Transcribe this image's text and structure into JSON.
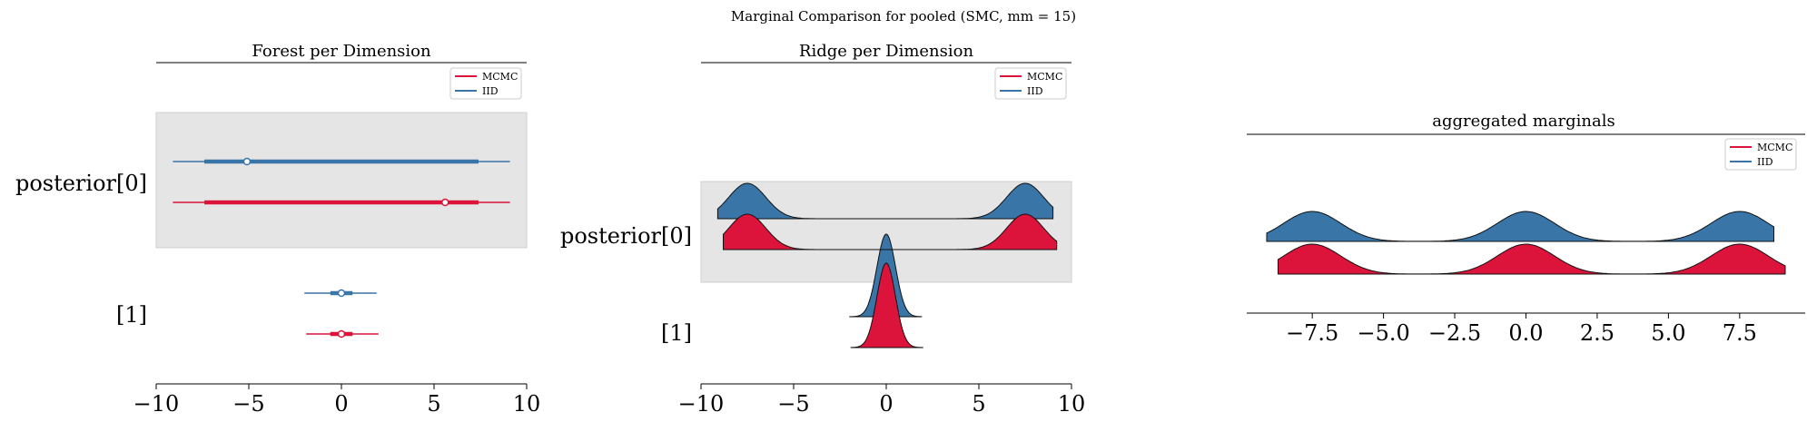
{
  "figure": {
    "suptitle": "Marginal Comparison for pooled (SMC, mm = 15)"
  },
  "colors": {
    "mcmc": "#dc143c",
    "iid": "#3a75a8",
    "band": "#e5e5e5"
  },
  "chart_data": [
    {
      "type": "forest",
      "title": "Forest per Dimension",
      "xlim": [
        -10,
        10
      ],
      "xticks": [
        -10,
        -5,
        0,
        5,
        10
      ],
      "xtick_labels": [
        "−10",
        "−5",
        "0",
        "5",
        "10"
      ],
      "ylabels": [
        "posterior[0]",
        "[1]"
      ],
      "legend": {
        "location": "upper right",
        "entries": [
          "MCMC",
          "IID"
        ]
      },
      "series": [
        {
          "name": "IID",
          "rows": [
            {
              "label": "posterior[0]",
              "hdi_outer": [
                -9.1,
                9.1
              ],
              "hdi_inner": [
                -7.4,
                7.4
              ],
              "point": -5.1
            },
            {
              "label": "[1]",
              "hdi_outer": [
                -2.0,
                1.9
              ],
              "hdi_inner": [
                -0.6,
                0.6
              ],
              "point": 0.0
            }
          ]
        },
        {
          "name": "MCMC",
          "rows": [
            {
              "label": "posterior[0]",
              "hdi_outer": [
                -9.1,
                9.1
              ],
              "hdi_inner": [
                -7.4,
                7.4
              ],
              "point": 5.6
            },
            {
              "label": "[1]",
              "hdi_outer": [
                -1.9,
                2.0
              ],
              "hdi_inner": [
                -0.6,
                0.6
              ],
              "point": 0.0
            }
          ]
        }
      ]
    },
    {
      "type": "ridge",
      "title": "Ridge per Dimension",
      "xlim": [
        -10,
        10
      ],
      "xticks": [
        -10,
        -5,
        0,
        5,
        10
      ],
      "xtick_labels": [
        "−10",
        "−5",
        "0",
        "5",
        "10"
      ],
      "ylabels": [
        "posterior[0]",
        "[1]"
      ],
      "legend": {
        "location": "upper right",
        "entries": [
          "MCMC",
          "IID"
        ]
      },
      "series": [
        {
          "name": "IID",
          "rows": [
            {
              "label": "posterior[0]",
              "range": [
                -9.1,
                9.0
              ],
              "modes": [
                -7.5,
                7.5
              ],
              "sd": 1.0
            },
            {
              "label": "[1]",
              "range": [
                -2.0,
                1.9
              ],
              "modes": [
                0.0
              ],
              "sd": 0.5
            }
          ]
        },
        {
          "name": "MCMC",
          "rows": [
            {
              "label": "posterior[0]",
              "range": [
                -8.8,
                9.2
              ],
              "modes": [
                -7.5,
                7.5
              ],
              "sd": 1.0
            },
            {
              "label": "[1]",
              "range": [
                -1.9,
                2.0
              ],
              "modes": [
                0.0
              ],
              "sd": 0.5
            }
          ]
        }
      ]
    },
    {
      "type": "ridge",
      "title": "aggregated marginals",
      "xlim": [
        -9.8,
        9.8
      ],
      "xticks": [
        -7.5,
        -5.0,
        -2.5,
        0.0,
        2.5,
        5.0,
        7.5
      ],
      "xtick_labels": [
        "−7.5",
        "−5.0",
        "−2.5",
        "0.0",
        "2.5",
        "5.0",
        "7.5"
      ],
      "legend": {
        "location": "upper right",
        "entries": [
          "MCMC",
          "IID"
        ]
      },
      "series": [
        {
          "name": "IID",
          "range": [
            -9.1,
            8.7
          ],
          "modes": [
            -7.5,
            0.0,
            7.5
          ],
          "sd": 1.0
        },
        {
          "name": "MCMC",
          "range": [
            -8.7,
            9.1
          ],
          "modes": [
            -7.5,
            0.0,
            7.5
          ],
          "sd": 1.0
        }
      ]
    }
  ]
}
